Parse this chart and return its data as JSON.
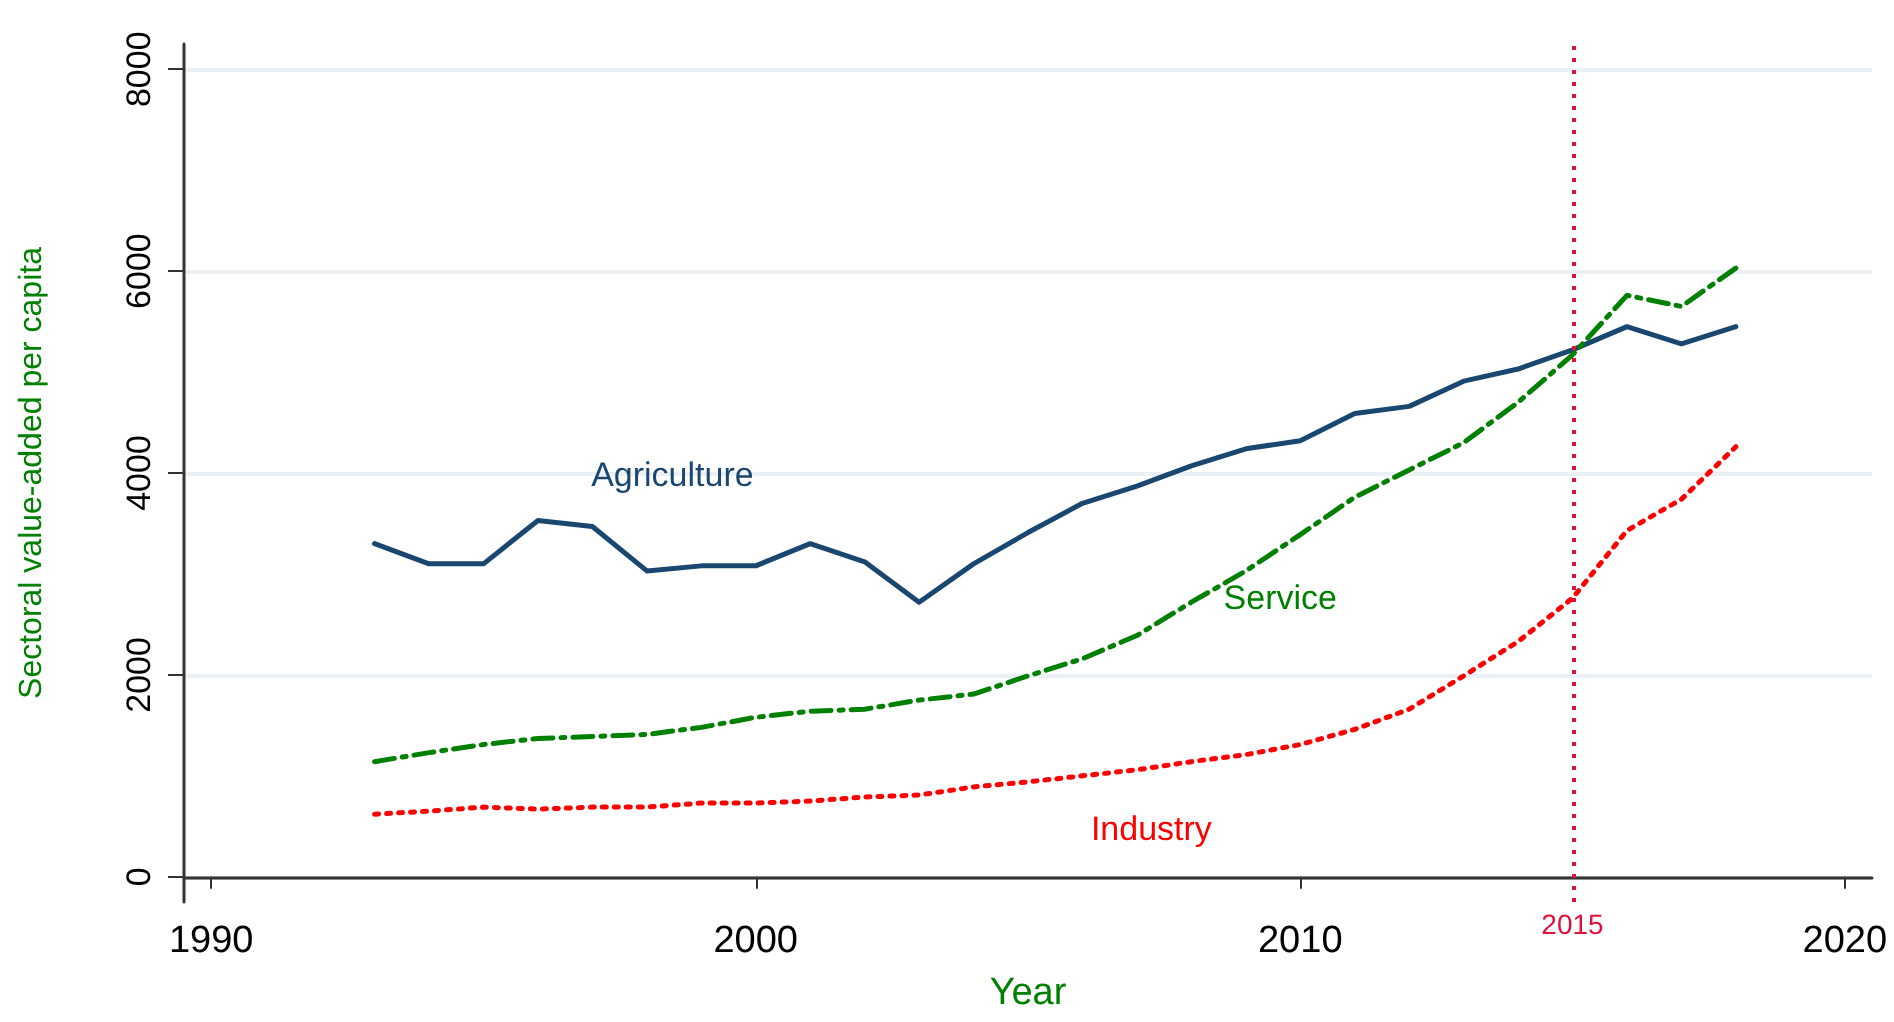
{
  "chart_data": {
    "type": "line",
    "xlabel": "Year",
    "ylabel": "Sectoral value-added per capita",
    "x": [
      1993,
      1994,
      1995,
      1996,
      1997,
      1998,
      1999,
      2000,
      2001,
      2002,
      2003,
      2004,
      2005,
      2006,
      2007,
      2008,
      2009,
      2010,
      2011,
      2012,
      2013,
      2014,
      2015,
      2016,
      2017,
      2018
    ],
    "series": [
      {
        "name": "Agriculture",
        "color": "#1a476f",
        "line_style": "solid",
        "values": [
          3300,
          3100,
          3100,
          3530,
          3470,
          3030,
          3080,
          3080,
          3300,
          3120,
          2720,
          3100,
          3410,
          3700,
          3870,
          4070,
          4240,
          4320,
          4590,
          4660,
          4910,
          5030,
          5220,
          5450,
          5280,
          5450
        ]
      },
      {
        "name": "Service",
        "color": "#008000",
        "line_style": "dashed",
        "values": [
          1140,
          1230,
          1310,
          1370,
          1390,
          1410,
          1480,
          1580,
          1640,
          1660,
          1750,
          1810,
          1990,
          2160,
          2390,
          2720,
          3030,
          3390,
          3760,
          4030,
          4300,
          4700,
          5170,
          5760,
          5650,
          6030
        ]
      },
      {
        "name": "Industry",
        "color": "#ff0000",
        "line_style": "dotted",
        "values": [
          620,
          650,
          690,
          670,
          690,
          690,
          730,
          730,
          750,
          790,
          810,
          890,
          940,
          1000,
          1060,
          1140,
          1210,
          1310,
          1460,
          1660,
          1990,
          2330,
          2760,
          3430,
          3740,
          4260
        ]
      }
    ],
    "xlim": [
      1989.5,
      2020.5
    ],
    "xticks": [
      1990,
      2000,
      2010,
      2020
    ],
    "ylim": [
      -250,
      8250
    ],
    "yticks": [
      0,
      2000,
      4000,
      6000,
      8000
    ],
    "ref_lines": [
      {
        "axis": "x",
        "value": 2015,
        "label": "2015",
        "color": "#e0103a",
        "line_style": "dotted"
      }
    ],
    "grid": "y",
    "legend": false,
    "marker": "none"
  }
}
